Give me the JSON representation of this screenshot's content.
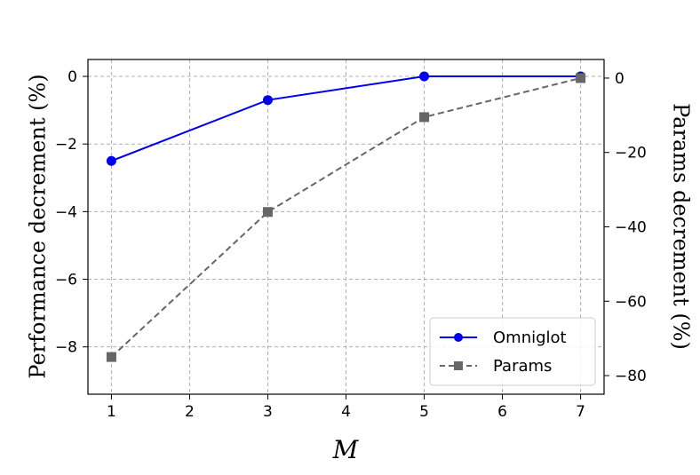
{
  "chart_data": {
    "type": "line",
    "xlabel": "M",
    "ylabel_left": "Performance decrement (%)",
    "ylabel_right": "Params decrement (%)",
    "x_ticks": [
      1,
      2,
      3,
      4,
      5,
      6,
      7
    ],
    "x_tick_labels": [
      "1",
      "2",
      "3",
      "4",
      "5",
      "6",
      "7"
    ],
    "xlim": [
      0.7,
      7.3
    ],
    "ylim_left": [
      -9.4,
      0.5
    ],
    "ylim_right": [
      -85,
      5
    ],
    "y_ticks_left": [
      0,
      -2,
      -4,
      -6,
      -8
    ],
    "y_tick_labels_left": [
      "0",
      "−2",
      "−4",
      "−6",
      "−8"
    ],
    "y_ticks_right": [
      0,
      -20,
      -40,
      -60,
      -80
    ],
    "y_tick_labels_right": [
      "0",
      "−20",
      "−40",
      "−60",
      "−80"
    ],
    "grid": true,
    "legend_position": "bottom-right",
    "series": [
      {
        "name": "Omniglot",
        "axis": "left",
        "x": [
          1,
          3,
          5,
          7
        ],
        "y": [
          -2.5,
          -0.7,
          0,
          0
        ],
        "color": "#0000ee",
        "line_style": "solid",
        "marker": "circle"
      },
      {
        "name": "Params",
        "axis": "right",
        "x": [
          1,
          3,
          5,
          7
        ],
        "y": [
          -75,
          -36,
          -10.5,
          0
        ],
        "color": "#666666",
        "line_style": "dashed",
        "marker": "square"
      }
    ]
  }
}
